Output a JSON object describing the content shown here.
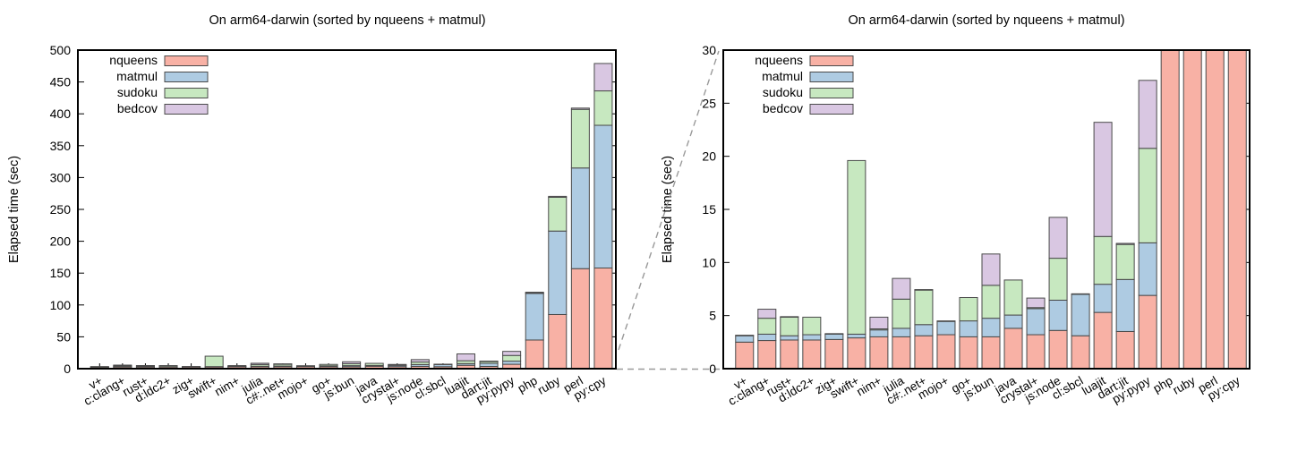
{
  "charts": [
    {
      "id": "overview",
      "title": "On arm64-darwin (sorted by nqueens + matmul)",
      "ylabel": "Elapsed time (sec)",
      "ylim": [
        0,
        500
      ],
      "ytick_step": 50,
      "legend_position": "top-left",
      "grid": false
    },
    {
      "id": "zoomed",
      "title": "On arm64-darwin (sorted by nqueens + matmul)",
      "ylabel": "Elapsed time (sec)",
      "ylim": [
        0,
        30
      ],
      "ytick_step": 5,
      "legend_position": "top-left",
      "grid": false
    }
  ],
  "chart_data": {
    "type": "bar",
    "stacked": true,
    "note": "Two panels show the same stacked elapsed-time data; right panel is a zoom of 0-30 sec (bars above 30 are clipped). Values in seconds.",
    "categories": [
      "v+",
      "c:clang+",
      "rust+",
      "d:ldc2+",
      "zig+",
      "swift+",
      "nim+",
      "julia",
      "c#:.net+",
      "mojo+",
      "go+",
      "js:bun",
      "java",
      "crystal+",
      "js:node",
      "cl:sbcl",
      "luajit",
      "dart:jit",
      "py:pypy",
      "php",
      "ruby",
      "perl",
      "py:cpy"
    ],
    "series": [
      {
        "name": "nqueens",
        "color": "#f8b1a5",
        "values": [
          2.5,
          2.65,
          2.7,
          2.7,
          2.75,
          2.9,
          3.0,
          3.0,
          3.1,
          3.2,
          3.0,
          3.0,
          3.8,
          3.2,
          3.6,
          3.1,
          5.3,
          3.5,
          6.9,
          45,
          85,
          157,
          158
        ]
      },
      {
        "name": "matmul",
        "color": "#aecbe2",
        "values": [
          0.6,
          0.6,
          0.4,
          0.5,
          0.5,
          0.35,
          0.65,
          0.8,
          1.05,
          1.25,
          1.5,
          1.75,
          1.25,
          2.45,
          2.85,
          3.9,
          2.65,
          4.9,
          4.95,
          73,
          131,
          158,
          224
        ]
      },
      {
        "name": "sudoku",
        "color": "#c7e8c0",
        "values": [
          0.05,
          1.5,
          1.75,
          1.65,
          0.05,
          16.35,
          0.1,
          2.75,
          3.25,
          0.05,
          2.2,
          3.1,
          3.3,
          0.1,
          3.95,
          0.05,
          4.5,
          3.3,
          8.9,
          1.0,
          53,
          92,
          54
        ]
      },
      {
        "name": "bedcov",
        "color": "#d9c7e2",
        "values": [
          0.0,
          0.85,
          0.05,
          0.0,
          0.0,
          0.0,
          1.1,
          1.95,
          0.05,
          0.0,
          0.0,
          2.95,
          0.0,
          0.9,
          3.85,
          0.0,
          10.75,
          0.1,
          6.4,
          1.0,
          1.5,
          2.0,
          43
        ]
      }
    ]
  },
  "colors": {
    "background": "#ffffff",
    "segment_border": "#4a4a4a",
    "axis": "#000000",
    "connector_dash": "#999999"
  }
}
